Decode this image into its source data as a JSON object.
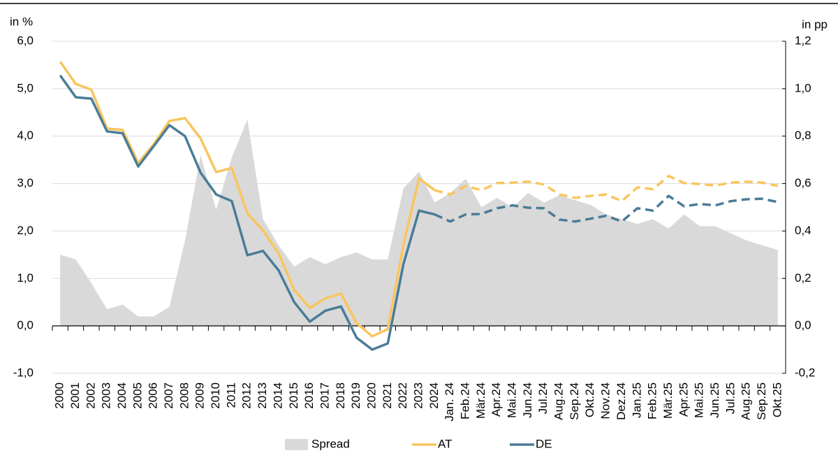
{
  "chart_data": {
    "type": "line",
    "y_label": "in %",
    "y2_label": "in pp",
    "categories": [
      "2000",
      "2001",
      "2002",
      "2003",
      "2004",
      "2005",
      "2006",
      "2007",
      "2008",
      "2009",
      "2010",
      "2011",
      "2012",
      "2013",
      "2014",
      "2015",
      "2016",
      "2017",
      "2018",
      "2019",
      "2020",
      "2021",
      "2022",
      "2023",
      "2024",
      "Jan. 24",
      "Feb.24",
      "Mär.24",
      "Apr.24",
      "Mai.24",
      "Jun.24",
      "Jul.24",
      "Aug.24",
      "Sep.24",
      "Okt.24",
      "Nov.24",
      "Dez.24",
      "Jan.25",
      "Feb.25",
      "Mär.25",
      "Apr.25",
      "Mai.25",
      "Jun.25",
      "Jul.25",
      "Aug.25",
      "Sep.25",
      "Okt.25"
    ],
    "series": [
      {
        "name": "Spread",
        "type": "area",
        "axis": "y2",
        "color": "#d9d9d9",
        "values": [
          0.3,
          0.28,
          0.18,
          0.07,
          0.09,
          0.04,
          0.04,
          0.08,
          0.36,
          0.72,
          0.49,
          0.71,
          0.87,
          0.45,
          0.34,
          0.25,
          0.29,
          0.26,
          0.29,
          0.31,
          0.28,
          0.28,
          0.58,
          0.65,
          0.52,
          0.56,
          0.62,
          0.5,
          0.54,
          0.5,
          0.56,
          0.52,
          0.55,
          0.53,
          0.51,
          0.47,
          0.45,
          0.43,
          0.45,
          0.41,
          0.47,
          0.42,
          0.42,
          0.39,
          0.36,
          0.34,
          0.32
        ]
      },
      {
        "name": "AT",
        "type": "line",
        "color": "#f9c55e",
        "values": [
          5.57,
          5.1,
          4.98,
          4.16,
          4.13,
          3.44,
          3.83,
          4.32,
          4.38,
          3.95,
          3.24,
          3.33,
          2.37,
          2.01,
          1.53,
          0.76,
          0.38,
          0.58,
          0.68,
          0.06,
          -0.22,
          -0.07,
          1.71,
          3.11,
          2.86,
          2.77,
          2.95,
          2.86,
          3.01,
          3.02,
          3.04,
          2.98,
          2.77,
          2.7,
          2.74,
          2.77,
          2.63,
          2.92,
          2.88,
          3.16,
          3.01,
          2.99,
          2.96,
          3.02,
          3.04,
          3.02,
          2.95
        ]
      },
      {
        "name": "DE",
        "type": "line",
        "color": "#4a7c97",
        "values": [
          5.28,
          4.82,
          4.79,
          4.1,
          4.06,
          3.36,
          3.79,
          4.23,
          4.0,
          3.23,
          2.77,
          2.63,
          1.49,
          1.58,
          1.17,
          0.5,
          0.09,
          0.32,
          0.41,
          -0.25,
          -0.5,
          -0.37,
          1.3,
          2.43,
          2.35,
          2.2,
          2.35,
          2.36,
          2.48,
          2.54,
          2.49,
          2.48,
          2.24,
          2.2,
          2.26,
          2.32,
          2.2,
          2.48,
          2.43,
          2.74,
          2.52,
          2.57,
          2.54,
          2.63,
          2.67,
          2.68,
          2.61
        ]
      }
    ],
    "dashed_from": 24,
    "ylim": [
      -1,
      6
    ],
    "yticks": [
      {
        "value": -1,
        "label": "-1,0"
      },
      {
        "value": 0,
        "label": "0,0"
      },
      {
        "value": 1,
        "label": "1,0"
      },
      {
        "value": 2,
        "label": "2,0"
      },
      {
        "value": 3,
        "label": "3,0"
      },
      {
        "value": 4,
        "label": "4,0"
      },
      {
        "value": 5,
        "label": "5,0"
      },
      {
        "value": 6,
        "label": "6,0"
      }
    ],
    "y2lim": [
      -0.2,
      1.2
    ],
    "y2ticks": [
      {
        "value": -0.2,
        "label": "-0,2"
      },
      {
        "value": 0,
        "label": "0,0"
      },
      {
        "value": 0.2,
        "label": "0,2"
      },
      {
        "value": 0.4,
        "label": "0,4"
      },
      {
        "value": 0.6,
        "label": "0,6"
      },
      {
        "value": 0.8,
        "label": "0,8"
      },
      {
        "value": 1,
        "label": "1,0"
      },
      {
        "value": 1.2,
        "label": "1,2"
      }
    ],
    "grid": true,
    "legend": "bottom"
  }
}
